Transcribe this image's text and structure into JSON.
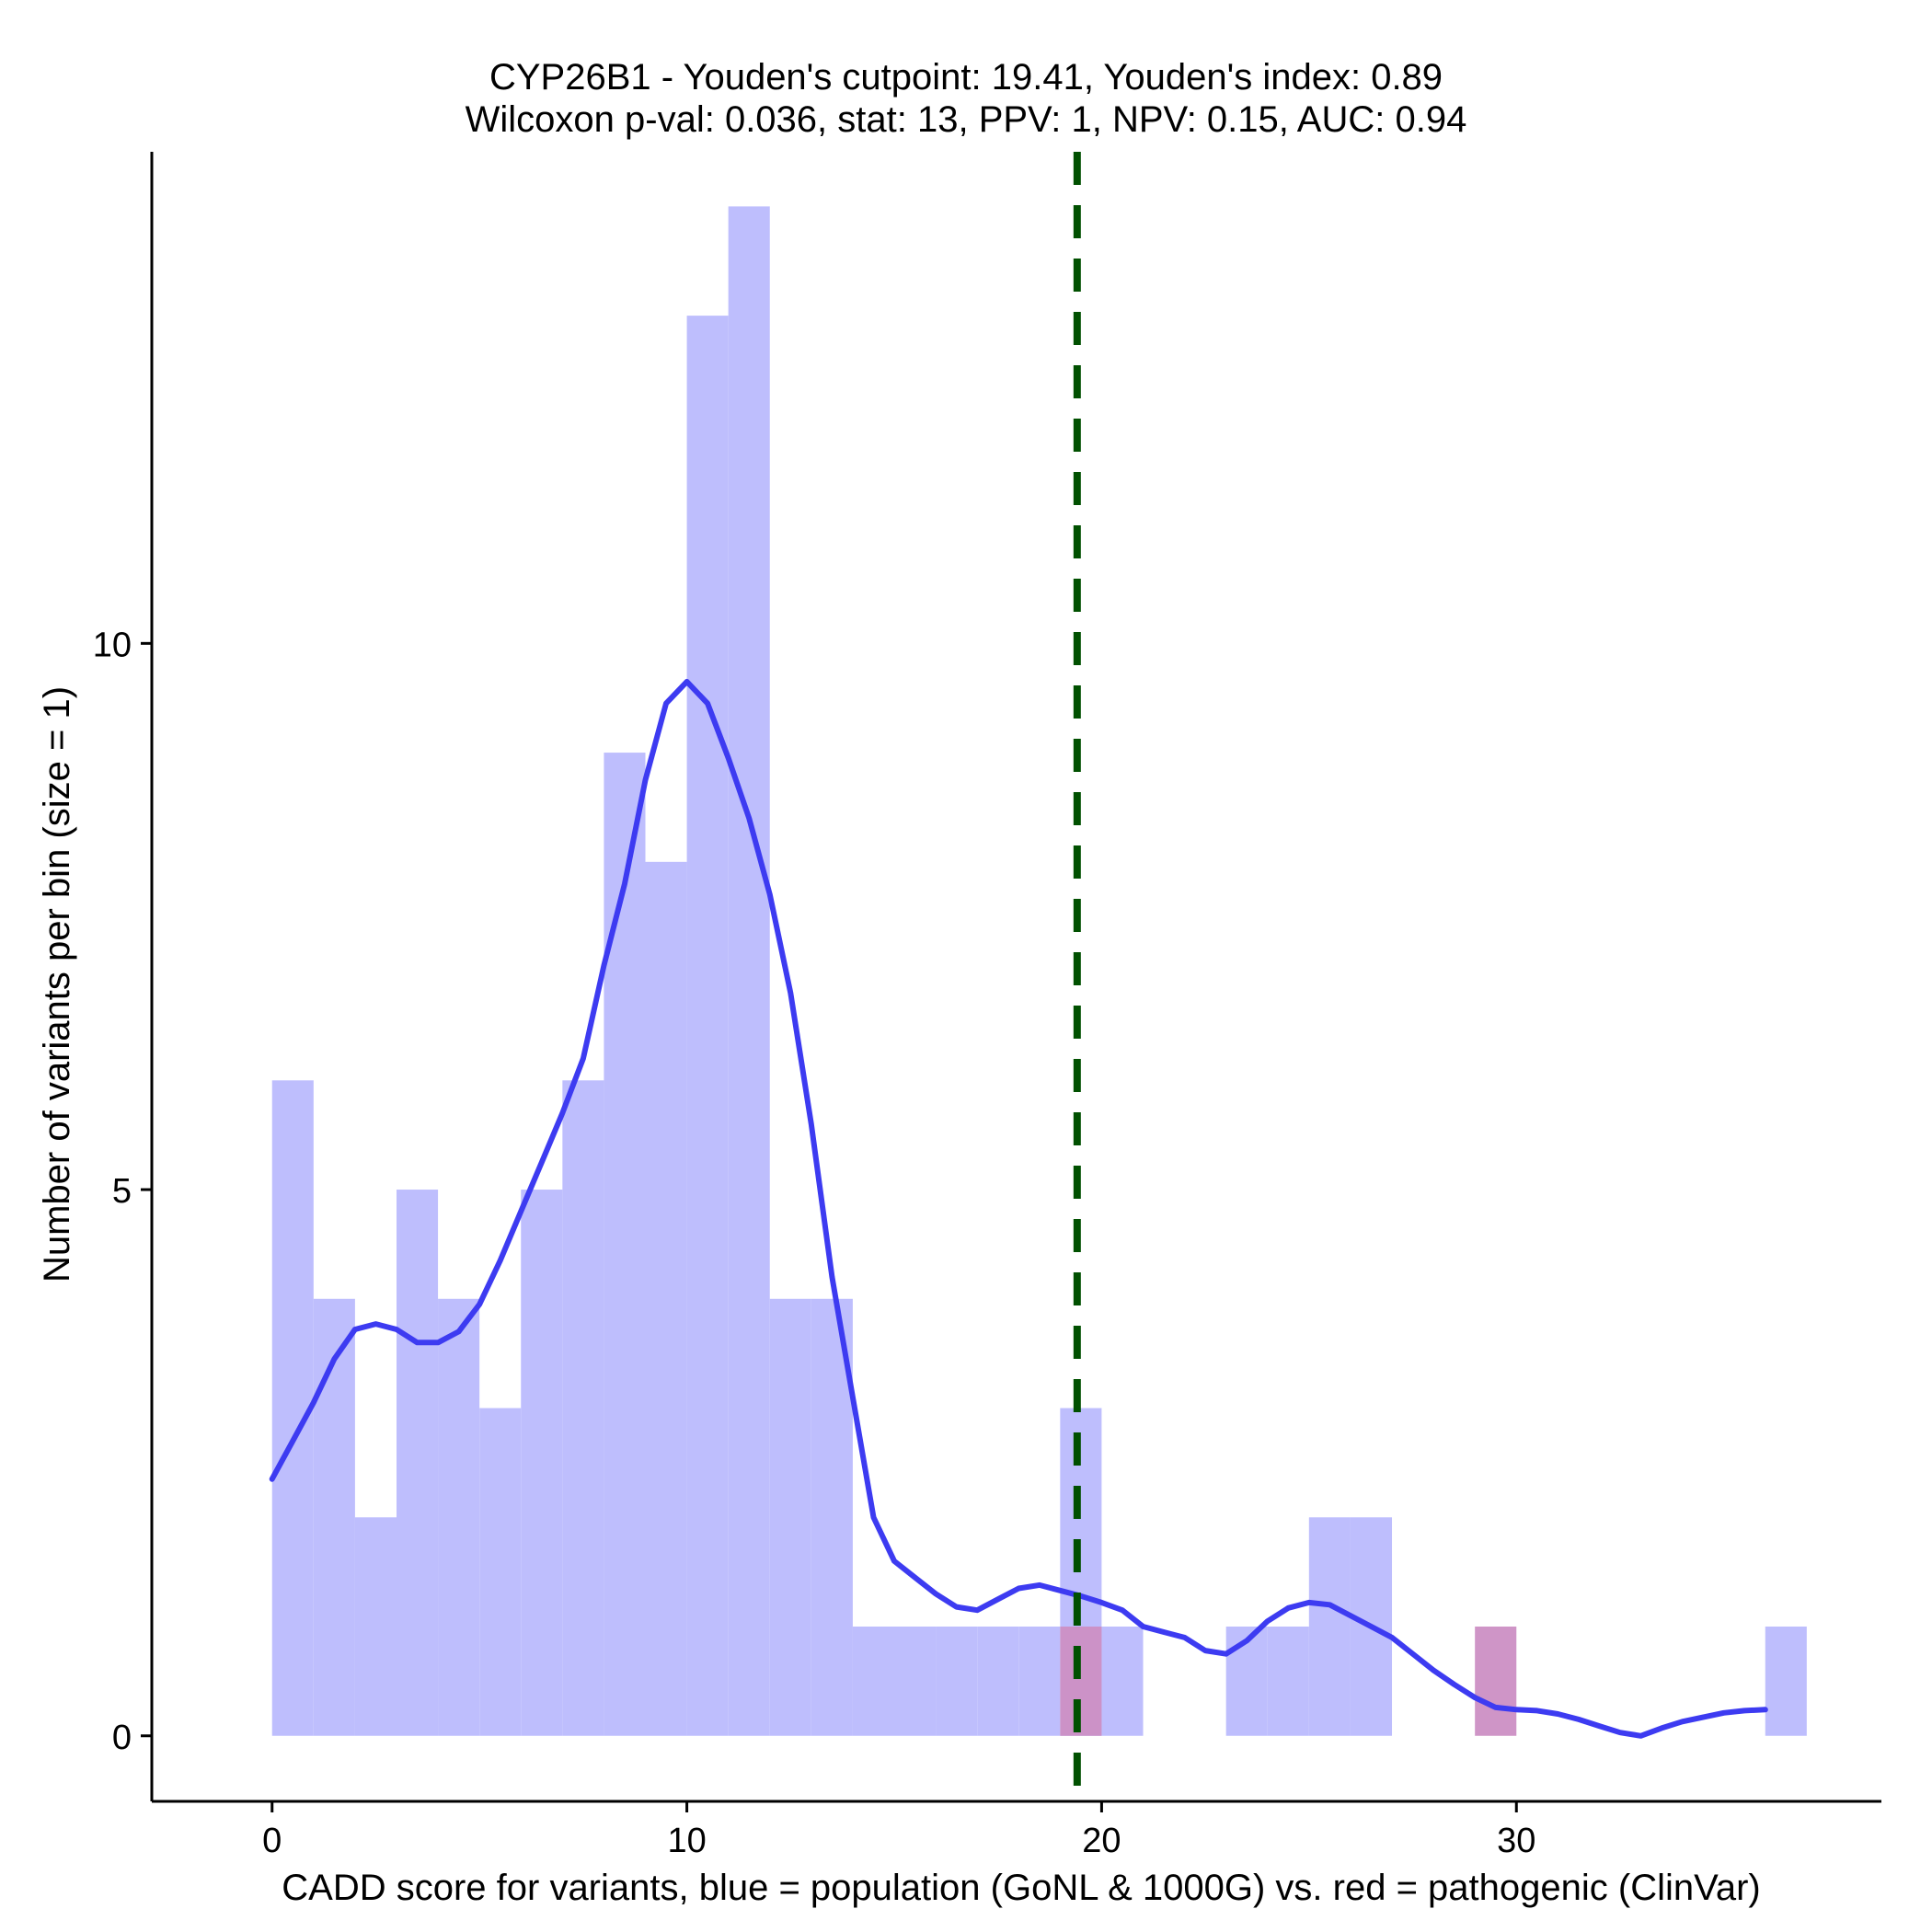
{
  "chart_data": {
    "type": "bar",
    "title_line1": "CYP26B1 - Youden's cutpoint: 19.41, Youden's index: 0.89",
    "title_line2": "Wilcoxon p-val: 0.036, stat: 13, PPV: 1, NPV: 0.15, AUC: 0.94",
    "xlabel": "CADD score for variants, blue = population (GoNL & 1000G) vs. red = pathogenic (ClinVar)",
    "ylabel": "Number of variants per bin (size = 1)",
    "xlim": [
      -2.9,
      38.8
    ],
    "ylim": [
      -0.6,
      14.5
    ],
    "x_ticks": [
      0,
      10,
      20,
      30
    ],
    "x_tick_labels": [
      "0",
      "10",
      "20",
      "30"
    ],
    "y_ticks": [
      0,
      5,
      10
    ],
    "y_tick_labels": [
      "0",
      "5",
      "10"
    ],
    "bin_size": 1,
    "series": [
      {
        "name": "population (GoNL & 1000G)",
        "color": "#bebefd",
        "bins": [
          {
            "x0": 0,
            "count": 6
          },
          {
            "x0": 1,
            "count": 4
          },
          {
            "x0": 2,
            "count": 2
          },
          {
            "x0": 3,
            "count": 5
          },
          {
            "x0": 4,
            "count": 4
          },
          {
            "x0": 5,
            "count": 3
          },
          {
            "x0": 6,
            "count": 5
          },
          {
            "x0": 7,
            "count": 6
          },
          {
            "x0": 8,
            "count": 9
          },
          {
            "x0": 9,
            "count": 8
          },
          {
            "x0": 10,
            "count": 13
          },
          {
            "x0": 11,
            "count": 14
          },
          {
            "x0": 12,
            "count": 4
          },
          {
            "x0": 13,
            "count": 4
          },
          {
            "x0": 14,
            "count": 1
          },
          {
            "x0": 15,
            "count": 1
          },
          {
            "x0": 16,
            "count": 1
          },
          {
            "x0": 17,
            "count": 1
          },
          {
            "x0": 18,
            "count": 1
          },
          {
            "x0": 19,
            "count": 3
          },
          {
            "x0": 20,
            "count": 1
          },
          {
            "x0": 23,
            "count": 1
          },
          {
            "x0": 24,
            "count": 1
          },
          {
            "x0": 25,
            "count": 2
          },
          {
            "x0": 26,
            "count": 2
          },
          {
            "x0": 36,
            "count": 1
          }
        ]
      },
      {
        "name": "pathogenic (ClinVar)",
        "color": "#cc8fc4",
        "bins": [
          {
            "x0": 19,
            "count": 1
          },
          {
            "x0": 29,
            "count": 1
          }
        ]
      }
    ],
    "density_curve": {
      "color": "#3d3bf1",
      "points": [
        [
          0,
          2.35
        ],
        [
          0.5,
          2.7
        ],
        [
          1.0,
          3.05
        ],
        [
          1.5,
          3.45
        ],
        [
          2.0,
          3.72
        ],
        [
          2.5,
          3.77
        ],
        [
          3.0,
          3.72
        ],
        [
          3.5,
          3.6
        ],
        [
          4.0,
          3.6
        ],
        [
          4.5,
          3.7
        ],
        [
          5.0,
          3.95
        ],
        [
          5.5,
          4.35
        ],
        [
          6.0,
          4.8
        ],
        [
          6.5,
          5.25
        ],
        [
          7.0,
          5.7
        ],
        [
          7.5,
          6.2
        ],
        [
          8.0,
          7.05
        ],
        [
          8.5,
          7.8
        ],
        [
          9.0,
          8.75
        ],
        [
          9.5,
          9.45
        ],
        [
          10.0,
          9.65
        ],
        [
          10.5,
          9.45
        ],
        [
          11.0,
          8.95
        ],
        [
          11.5,
          8.4
        ],
        [
          12.0,
          7.7
        ],
        [
          12.5,
          6.8
        ],
        [
          13.0,
          5.6
        ],
        [
          13.5,
          4.2
        ],
        [
          14.0,
          3.1
        ],
        [
          14.5,
          2.0
        ],
        [
          15.0,
          1.6
        ],
        [
          15.5,
          1.45
        ],
        [
          16.0,
          1.3
        ],
        [
          16.5,
          1.18
        ],
        [
          17.0,
          1.15
        ],
        [
          17.5,
          1.25
        ],
        [
          18.0,
          1.35
        ],
        [
          18.5,
          1.38
        ],
        [
          19.0,
          1.33
        ],
        [
          19.5,
          1.28
        ],
        [
          20.0,
          1.22
        ],
        [
          20.5,
          1.15
        ],
        [
          21.0,
          1.0
        ],
        [
          21.5,
          0.95
        ],
        [
          22.0,
          0.9
        ],
        [
          22.5,
          0.78
        ],
        [
          23.0,
          0.75
        ],
        [
          23.5,
          0.87
        ],
        [
          24.0,
          1.05
        ],
        [
          24.5,
          1.17
        ],
        [
          25.0,
          1.22
        ],
        [
          25.5,
          1.2
        ],
        [
          26.0,
          1.1
        ],
        [
          26.5,
          1.0
        ],
        [
          27.0,
          0.9
        ],
        [
          27.5,
          0.75
        ],
        [
          28.0,
          0.6
        ],
        [
          28.5,
          0.47
        ],
        [
          29.0,
          0.35
        ],
        [
          29.5,
          0.26
        ],
        [
          30.0,
          0.24
        ],
        [
          30.5,
          0.23
        ],
        [
          31.0,
          0.2
        ],
        [
          31.5,
          0.15
        ],
        [
          32.0,
          0.09
        ],
        [
          32.5,
          0.03
        ],
        [
          33.0,
          0.0
        ],
        [
          33.5,
          0.07
        ],
        [
          34.0,
          0.13
        ],
        [
          34.5,
          0.17
        ],
        [
          35.0,
          0.21
        ],
        [
          35.5,
          0.23
        ],
        [
          36.0,
          0.24
        ]
      ]
    },
    "cutpoint_line": {
      "x": 19.41,
      "color": "#005000"
    }
  }
}
